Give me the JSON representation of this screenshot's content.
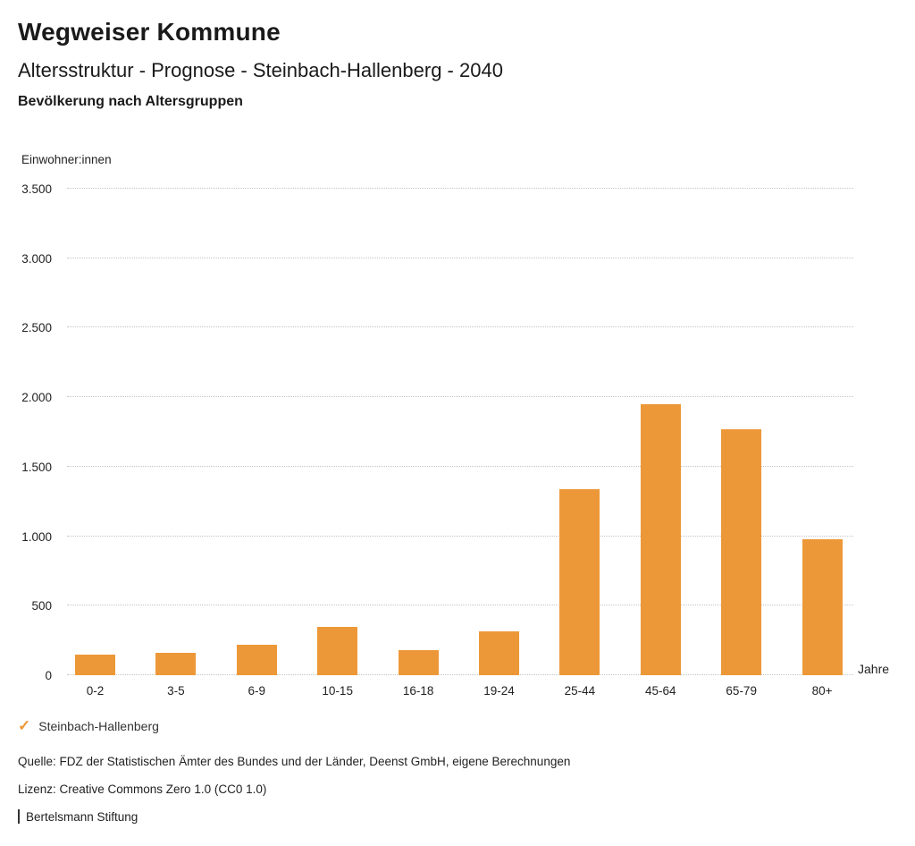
{
  "header": {
    "brand": "Wegweiser Kommune",
    "title": "Altersstruktur - Prognose - Steinbach-Hallenberg - 2040",
    "subtitle": "Bevölkerung nach Altersgruppen"
  },
  "chart_data": {
    "type": "bar",
    "title": "Bevölkerung nach Altersgruppen",
    "ylabel": "Einwohner:innen",
    "xlabel": "Jahre",
    "categories": [
      "0-2",
      "3-5",
      "6-9",
      "10-15",
      "16-18",
      "19-24",
      "25-44",
      "45-64",
      "65-79",
      "80+"
    ],
    "values": [
      150,
      158,
      220,
      348,
      180,
      315,
      1340,
      1950,
      1770,
      975
    ],
    "series_name": "Steinbach-Hallenberg",
    "ylim": [
      0,
      3500
    ],
    "ytick_step": 500,
    "ytick_labels": [
      "0",
      "500",
      "1.000",
      "1.500",
      "2.000",
      "2.500",
      "3.000",
      "3.500"
    ],
    "bar_color": "#ED9838",
    "grid": "horizontal-dotted",
    "legend_position": "bottom-left"
  },
  "legend": {
    "check": "✓",
    "label": "Steinbach-Hallenberg",
    "check_color": "#ED9838"
  },
  "footer": {
    "source": "Quelle: FDZ der Statistischen Ämter des Bundes und der Länder, Deenst GmbH, eigene Berechnungen",
    "license": "Lizenz: Creative Commons Zero 1.0 (CC0 1.0)",
    "attribution": "Bertelsmann Stiftung"
  }
}
